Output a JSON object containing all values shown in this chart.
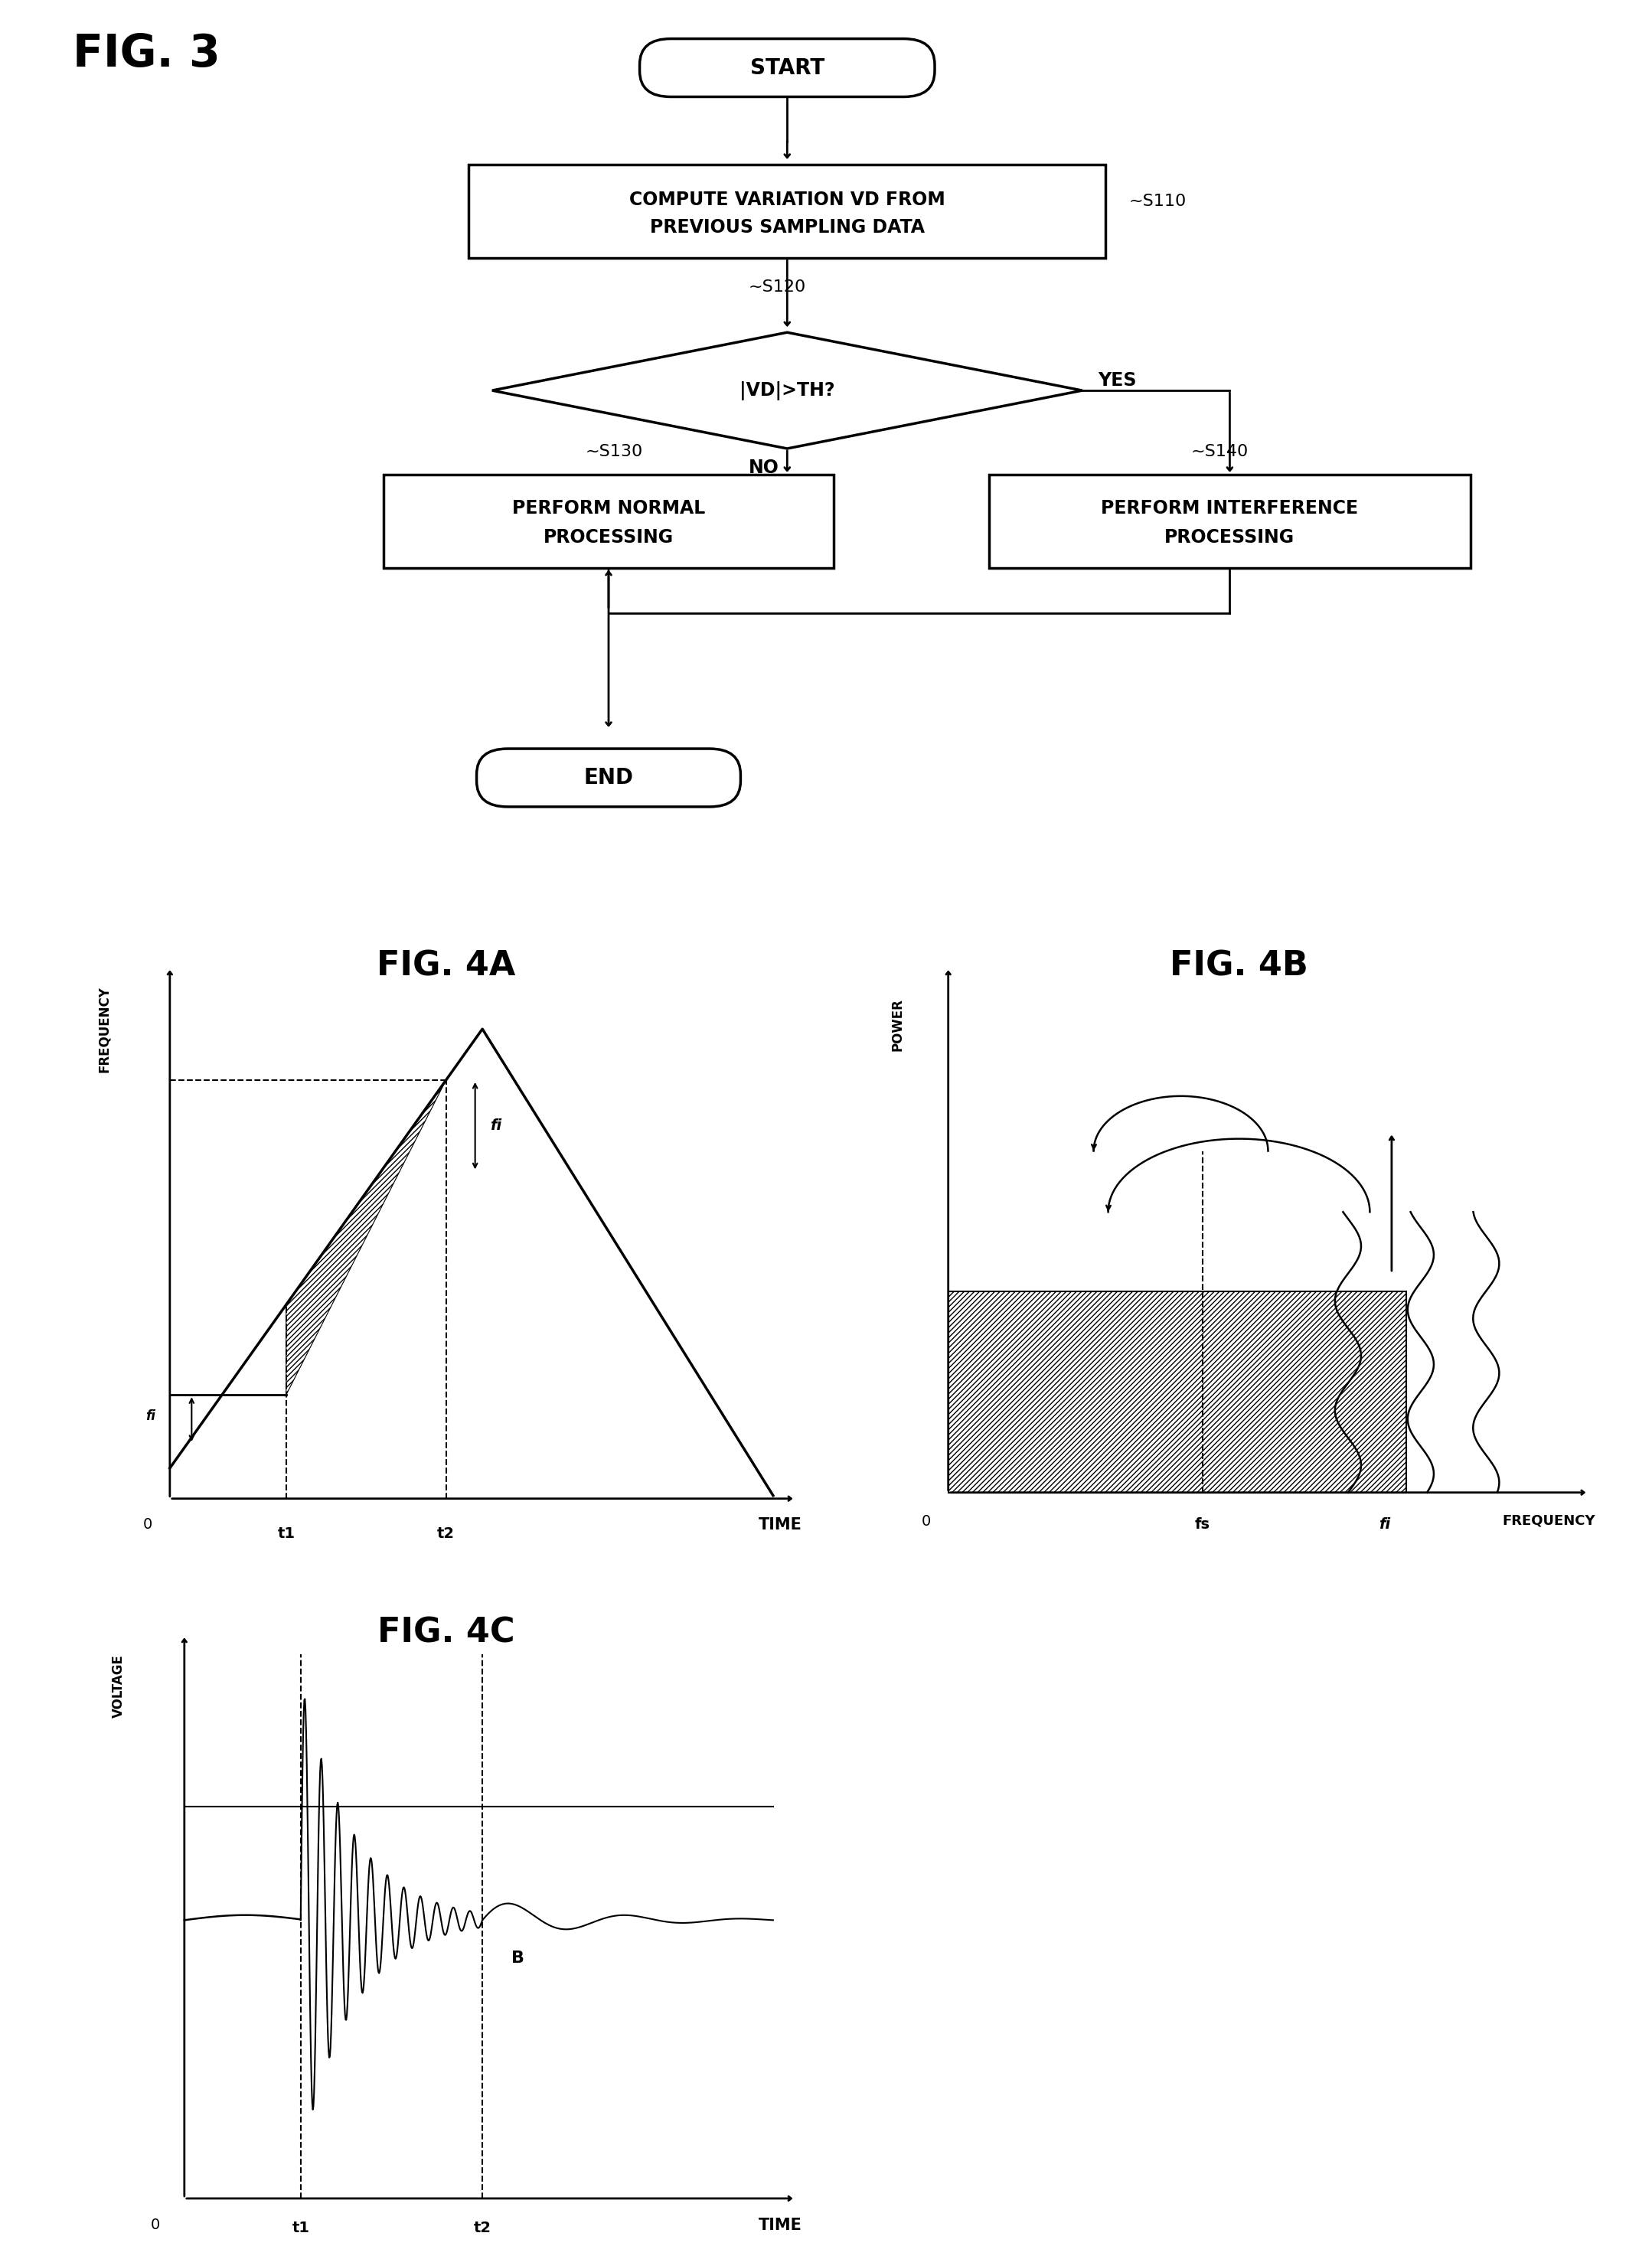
{
  "fig_title": "FIG. 3",
  "fig4a_title": "FIG. 4A",
  "fig4b_title": "FIG. 4B",
  "fig4c_title": "FIG. 4C",
  "background_color": "#ffffff",
  "flowchart": {
    "start_text": "START",
    "box1_line1": "COMPUTE VARIATION VD FROM",
    "box1_line2": "PREVIOUS SAMPLING DATA",
    "diamond_text": "|VD|>TH?",
    "box2_line1": "PERFORM NORMAL",
    "box2_line2": "PROCESSING",
    "box3_line1": "PERFORM INTERFERENCE",
    "box3_line2": "PROCESSING",
    "end_text": "END",
    "s110": "S110",
    "s120": "S120",
    "s130": "S130",
    "s140": "S140",
    "yes_label": "YES",
    "no_label": "NO"
  }
}
